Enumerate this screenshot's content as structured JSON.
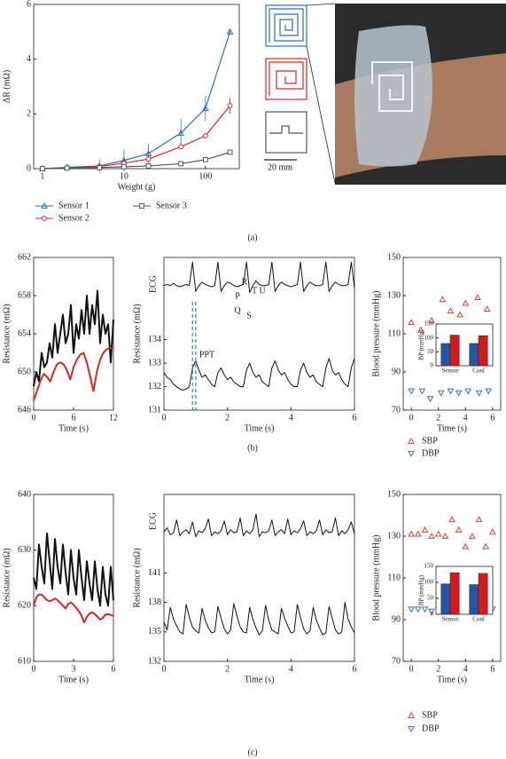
{
  "panels": [
    "(a)",
    "(b)",
    "(c)"
  ],
  "scale_bar": "20 mm",
  "chart_data": [
    {
      "type": "line",
      "xscale": "log",
      "xlabel": "Weight (g)",
      "ylabel": "ΔR (mΩ)",
      "xlim": [
        0.78,
        260
      ],
      "xticks": [
        1,
        10,
        100
      ],
      "ylim": [
        0,
        6
      ],
      "yticks": [
        0,
        2,
        4,
        6
      ],
      "legend": "below",
      "x": [
        1,
        2,
        5,
        10,
        20,
        50,
        100,
        200
      ],
      "series": [
        {
          "name": "Sensor 1",
          "color": "#2f6eb5",
          "marker": "triangle",
          "values": [
            0,
            0.05,
            0.1,
            0.3,
            0.55,
            1.3,
            2.2,
            5.0
          ],
          "errors": [
            0.05,
            0.06,
            0.25,
            0.4,
            0.35,
            0.5,
            0.45,
            0.1
          ]
        },
        {
          "name": "Sensor 2",
          "color": "#d62728",
          "marker": "circle",
          "values": [
            0,
            0.03,
            0.08,
            0.2,
            0.35,
            0.8,
            1.2,
            2.3
          ],
          "errors": [
            0.03,
            0.04,
            0.08,
            0.1,
            0.1,
            0.1,
            0.1,
            0.3
          ]
        },
        {
          "name": "Sensor 3",
          "color": "#555555",
          "marker": "square",
          "values": [
            0,
            0.02,
            0.04,
            0.07,
            0.1,
            0.18,
            0.33,
            0.6
          ],
          "errors": [
            0.02,
            0.02,
            0.03,
            0.03,
            0.03,
            0.04,
            0.04,
            0.05
          ]
        }
      ]
    },
    {
      "type": "line",
      "xlabel": "Time (s)",
      "ylabel": "Resistance (mΩ)",
      "xlim": [
        0,
        12
      ],
      "xticks": [
        0,
        6,
        12
      ],
      "ylim": [
        646,
        662
      ],
      "yticks": [
        646,
        650,
        654,
        658,
        662
      ],
      "series": [
        {
          "color": "#111111",
          "width": 2,
          "x": [
            0,
            0.4,
            0.8,
            1.2,
            1.6,
            2,
            2.4,
            2.8,
            3.2,
            3.6,
            4,
            4.4,
            4.8,
            5.2,
            5.6,
            6,
            6.4,
            6.8,
            7.2,
            7.6,
            8,
            8.4,
            8.8,
            9.2,
            9.6,
            10,
            10.4,
            10.8,
            11.2,
            11.6,
            12
          ],
          "values": [
            648.5,
            650,
            649,
            652,
            650.5,
            651,
            653,
            651.5,
            655,
            652,
            654,
            656,
            653,
            654,
            657,
            652,
            655,
            653.5,
            656.5,
            654,
            658,
            654,
            657,
            655,
            658.5,
            653,
            656,
            654,
            655,
            651,
            655.5
          ]
        },
        {
          "color": "#d62728",
          "width": 2,
          "x": [
            0,
            0.5,
            1,
            1.5,
            2,
            2.5,
            3,
            3.5,
            4,
            4.5,
            5,
            5.5,
            6,
            6.5,
            7,
            7.5,
            8,
            8.5,
            9,
            9.5,
            10,
            10.5,
            11,
            11.5,
            12
          ],
          "values": [
            647,
            648,
            649,
            649.8,
            649.5,
            649,
            650,
            650.8,
            651,
            650.8,
            650.2,
            649.2,
            650.5,
            651.3,
            651.8,
            652,
            651,
            649.5,
            648,
            650,
            651.3,
            652,
            652.4,
            652.5,
            652.5
          ]
        }
      ]
    },
    {
      "type": "line",
      "xlabel": "Time (s)",
      "ylabel": "Resistance (mΩ)",
      "ecg_label": "ECG",
      "ecg_labels": [
        "R",
        "P",
        "T",
        "U",
        "Q",
        "S"
      ],
      "ppt_label": "PPT",
      "ppt_x": [
        0.9,
        1.0
      ],
      "xlim": [
        0,
        6
      ],
      "xticks": [
        0,
        2,
        4,
        6
      ],
      "ylim": [
        131,
        137.5
      ],
      "yticks": [
        131,
        132,
        133,
        134
      ],
      "x": [
        0,
        0.1,
        0.2,
        0.3,
        0.4,
        0.5,
        0.6,
        0.7,
        0.8,
        0.9,
        1,
        1.1,
        1.2,
        1.3,
        1.4,
        1.5,
        1.6,
        1.7,
        1.8,
        1.9,
        2,
        2.1,
        2.2,
        2.3,
        2.4,
        2.5,
        2.6,
        2.7,
        2.8,
        2.9,
        3,
        3.1,
        3.2,
        3.3,
        3.4,
        3.5,
        3.6,
        3.7,
        3.8,
        3.9,
        4,
        4.1,
        4.2,
        4.3,
        4.4,
        4.5,
        4.6,
        4.7,
        4.8,
        4.9,
        5,
        5.1,
        5.2,
        5.3,
        5.4,
        5.5,
        5.6,
        5.7,
        5.8,
        5.9,
        6
      ],
      "series": [
        {
          "color": "#111111",
          "width": 1,
          "values": [
            136.3,
            136.35,
            136.3,
            136.4,
            136.3,
            136.25,
            136.3,
            136.35,
            136.3,
            137.3,
            136.05,
            136.3,
            136.45,
            136.35,
            136.3,
            136.25,
            136.3,
            137.3,
            136.05,
            136.3,
            136.45,
            136.4,
            136.3,
            136.25,
            136.3,
            136.35,
            137.3,
            136.0,
            136.3,
            136.5,
            136.35,
            136.3,
            136.3,
            136.35,
            137.3,
            136.05,
            136.3,
            136.45,
            136.35,
            136.3,
            136.25,
            136.3,
            136.35,
            137.3,
            136.05,
            136.3,
            136.45,
            136.35,
            136.3,
            136.3,
            136.35,
            137.3,
            136.05,
            136.3,
            136.45,
            136.35,
            136.3,
            136.3,
            136.35,
            137.3,
            136.2
          ]
        },
        {
          "color": "#111111",
          "width": 1,
          "values": [
            132.6,
            132.4,
            132.3,
            132.1,
            132.0,
            131.9,
            131.85,
            131.9,
            132.0,
            132.8,
            133.1,
            132.7,
            132.4,
            132.5,
            132.3,
            132.1,
            132.0,
            132.6,
            132.8,
            132.5,
            132.3,
            132.4,
            132.2,
            132.1,
            132.0,
            132.0,
            132.7,
            133.0,
            132.6,
            132.4,
            132.5,
            132.2,
            132.1,
            132.0,
            132.8,
            133.1,
            132.7,
            132.5,
            132.6,
            132.3,
            132.1,
            132.0,
            132.0,
            132.7,
            133.0,
            132.6,
            132.4,
            132.5,
            132.2,
            132.1,
            132.0,
            132.8,
            133.2,
            132.7,
            132.5,
            132.6,
            132.3,
            132.1,
            132.0,
            132.8,
            133.2
          ]
        }
      ]
    },
    {
      "type": "scatter",
      "xlabel": "Time (s)",
      "ylabel": "Blood pressure (mmHg)",
      "legend": "below",
      "xlim": [
        -0.6,
        6.6
      ],
      "xticks": [
        0,
        2,
        4,
        6
      ],
      "ylim": [
        70,
        150
      ],
      "yticks": [
        70,
        90,
        110,
        130,
        150
      ],
      "series": [
        {
          "name": "SBP",
          "color": "#e0403a",
          "marker": "triangle",
          "x": [
            0,
            0.7,
            1.5,
            2.3,
            2.9,
            3.6,
            4.0,
            4.9,
            5.6
          ],
          "values": [
            116,
            112,
            117,
            128,
            122,
            120,
            126,
            129,
            123
          ]
        },
        {
          "name": "DBP",
          "color": "#3a6fc4",
          "marker": "triangle-down",
          "x": [
            0,
            0.8,
            1.4,
            2.2,
            2.9,
            3.5,
            4.2,
            5.0,
            5.7
          ],
          "values": [
            80,
            80,
            76,
            79,
            80,
            79,
            80,
            79,
            80
          ]
        }
      ]
    },
    {
      "type": "bar",
      "ylabel": "BP (mmHg)",
      "categories": [
        "Sensor",
        "Conl"
      ],
      "ylim": [
        0,
        150
      ],
      "yticks": [
        0,
        50,
        100,
        150
      ],
      "series": [
        {
          "color": "#2255a4",
          "values": [
            80,
            80
          ]
        },
        {
          "color": "#d7191c",
          "values": [
            110,
            108
          ]
        }
      ]
    },
    {
      "type": "line",
      "xlabel": "Time (s)",
      "ylabel": "Resistance (mΩ)",
      "xlim": [
        0,
        6
      ],
      "xticks": [
        0,
        3,
        6
      ],
      "ylim": [
        610,
        640
      ],
      "yticks": [
        610,
        620,
        630,
        640
      ],
      "x": [
        0,
        0.2,
        0.4,
        0.6,
        0.8,
        1,
        1.2,
        1.4,
        1.6,
        1.8,
        2,
        2.2,
        2.4,
        2.6,
        2.8,
        3,
        3.2,
        3.4,
        3.6,
        3.8,
        4,
        4.2,
        4.4,
        4.6,
        4.8,
        5,
        5.2,
        5.4,
        5.6,
        5.8,
        6
      ],
      "series": [
        {
          "color": "#111111",
          "width": 2,
          "values": [
            625,
            623,
            631,
            627,
            624,
            633,
            628,
            623,
            632,
            627,
            624,
            631,
            626,
            622,
            630,
            625,
            622,
            630,
            625,
            621,
            628,
            624,
            621,
            628,
            623,
            620,
            627,
            622,
            620,
            627,
            621
          ]
        },
        {
          "color": "#d62728",
          "width": 2,
          "values": [
            620,
            621.5,
            622,
            622,
            621.5,
            621,
            620.8,
            621,
            621.3,
            621,
            620.5,
            620,
            619.5,
            620.3,
            620.6,
            620.2,
            619.6,
            619,
            618.2,
            617,
            618,
            618.6,
            618.8,
            618.5,
            618,
            617.5,
            617.8,
            618.4,
            618.5,
            618.3,
            618.2
          ]
        }
      ]
    },
    {
      "type": "line",
      "xlabel": "Time (s)",
      "ylabel": "Resistance (mΩ)",
      "ecg_label": "ECG",
      "xlim": [
        0,
        6
      ],
      "xticks": [
        0,
        2,
        4,
        6
      ],
      "ylim": [
        132,
        149
      ],
      "yticks": [
        132,
        135,
        138,
        141
      ],
      "x": [
        0,
        0.1,
        0.2,
        0.3,
        0.4,
        0.5,
        0.6,
        0.7,
        0.8,
        0.9,
        1,
        1.1,
        1.2,
        1.3,
        1.4,
        1.5,
        1.6,
        1.7,
        1.8,
        1.9,
        2,
        2.1,
        2.2,
        2.3,
        2.4,
        2.5,
        2.6,
        2.7,
        2.8,
        2.9,
        3,
        3.1,
        3.2,
        3.3,
        3.4,
        3.5,
        3.6,
        3.7,
        3.8,
        3.9,
        4,
        4.1,
        4.2,
        4.3,
        4.4,
        4.5,
        4.6,
        4.7,
        4.8,
        4.9,
        5,
        5.1,
        5.2,
        5.3,
        5.4,
        5.5,
        5.6,
        5.7,
        5.8,
        5.9,
        6
      ],
      "series": [
        {
          "color": "#111111",
          "width": 1,
          "values": [
            145.2,
            145.6,
            144.9,
            145.1,
            146.4,
            144.8,
            145.2,
            145.4,
            145.0,
            146.2,
            144.7,
            145.3,
            145.1,
            145.5,
            146.5,
            144.8,
            145.2,
            145.0,
            145.3,
            146.3,
            144.9,
            145.4,
            145.1,
            145.2,
            146.6,
            144.8,
            145.3,
            145.0,
            145.4,
            147.0,
            144.7,
            145.2,
            145.1,
            145.3,
            146.4,
            144.8,
            145.2,
            145.4,
            145.0,
            146.5,
            144.9,
            145.3,
            145.1,
            145.5,
            146.3,
            144.8,
            145.2,
            145.0,
            145.3,
            146.4,
            144.9,
            145.4,
            145.1,
            145.2,
            146.6,
            144.8,
            145.3,
            145.0,
            145.4,
            146.2,
            145.0
          ]
        },
        {
          "color": "#111111",
          "width": 1,
          "values": [
            136.0,
            135.2,
            137.5,
            136.3,
            135.6,
            135.0,
            134.8,
            137.8,
            136.5,
            135.5,
            135.1,
            134.9,
            137.4,
            136.2,
            135.4,
            134.9,
            135.0,
            137.6,
            136.4,
            135.3,
            134.8,
            135.2,
            137.9,
            136.6,
            135.5,
            135.0,
            134.9,
            137.5,
            136.3,
            135.4,
            134.7,
            135.1,
            137.7,
            136.2,
            135.2,
            135.0,
            134.8,
            137.4,
            136.4,
            135.6,
            134.9,
            135.0,
            137.8,
            136.5,
            135.3,
            134.8,
            135.1,
            137.5,
            136.2,
            135.4,
            134.7,
            134.9,
            137.6,
            136.4,
            135.2,
            134.8,
            135.0,
            138.0,
            136.3,
            135.5,
            134.9
          ]
        }
      ]
    },
    {
      "type": "scatter",
      "xlabel": "Time (s)",
      "ylabel": "Blood pressure (mmHg)",
      "legend": "below",
      "xlim": [
        -0.6,
        6.6
      ],
      "xticks": [
        0,
        2,
        4,
        6
      ],
      "ylim": [
        70,
        150
      ],
      "yticks": [
        70,
        90,
        110,
        130,
        150
      ],
      "series": [
        {
          "name": "SBP",
          "color": "#e0403a",
          "marker": "triangle",
          "x": [
            0,
            0.5,
            1,
            1.5,
            2,
            2.5,
            3,
            3.5,
            4,
            4.5,
            5,
            5.5,
            6
          ],
          "values": [
            131,
            131,
            133,
            130,
            131,
            130,
            138,
            133,
            125,
            130,
            138,
            125,
            132
          ]
        },
        {
          "name": "DBP",
          "color": "#3a6fc4",
          "marker": "triangle-down",
          "x": [
            0,
            0.5,
            1,
            1.5,
            2,
            2.5,
            3,
            3.5,
            4,
            4.5,
            5,
            5.5,
            6
          ],
          "values": [
            95,
            95,
            95,
            94,
            95,
            94,
            95,
            95,
            94,
            95,
            95,
            94,
            95
          ]
        }
      ]
    },
    {
      "type": "bar",
      "ylabel": "BP (mmHg)",
      "categories": [
        "Sensor",
        "Conl"
      ],
      "ylim": [
        0,
        150
      ],
      "yticks": [
        0,
        50,
        100,
        150
      ],
      "series": [
        {
          "color": "#2255a4",
          "values": [
            95,
            93
          ]
        },
        {
          "color": "#d7191c",
          "values": [
            130,
            128
          ]
        }
      ]
    }
  ]
}
